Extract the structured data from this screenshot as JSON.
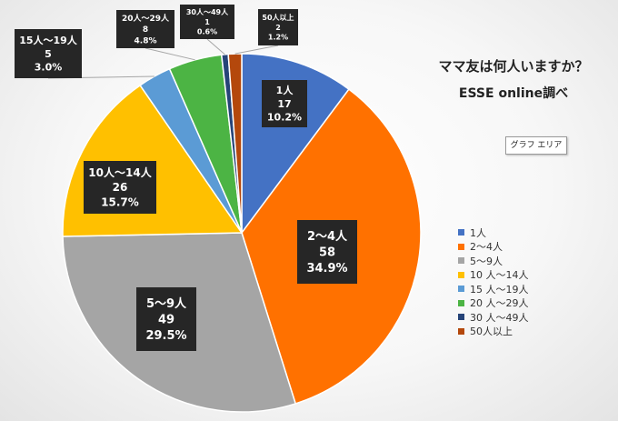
{
  "chart_data": {
    "type": "pie",
    "title": "ママ友は何人いますか？",
    "subtitle": "ESSE online調べ",
    "slices": [
      {
        "label": "1人",
        "count": "17",
        "value": 10.2,
        "pct": "10.2%",
        "color": "#4472C4"
      },
      {
        "label": "2～4人",
        "count": "58",
        "value": 34.9,
        "pct": "34.9%",
        "color": "#FF7100"
      },
      {
        "label": "5～9人",
        "count": "49",
        "value": 29.5,
        "pct": "29.5%",
        "color": "#A5A5A5"
      },
      {
        "label": "10人～14人",
        "count": "26",
        "value": 15.7,
        "pct": "15.7%",
        "color": "#FFC000"
      },
      {
        "label": "15人～19人",
        "count": "5",
        "value": 3.0,
        "pct": "3.0%",
        "color": "#5B9BD5"
      },
      {
        "label": "20人～29人",
        "count": "8",
        "value": 4.8,
        "pct": "4.8%",
        "color": "#4CB444"
      },
      {
        "label": "30人～49人",
        "count": "1",
        "value": 0.6,
        "pct": "0.6%",
        "color": "#264478"
      },
      {
        "label": "50人以上",
        "count": "2",
        "value": 1.2,
        "pct": "1.2%",
        "color": "#B4480C"
      }
    ],
    "legend": {
      "position": "right",
      "entries": [
        "1人",
        "2～4人",
        "5～9人",
        "10 人～14人",
        "15 人～19人",
        "20 人～29人",
        "30 人～49人",
        "50人以上"
      ]
    }
  },
  "tooltip": {
    "label": "グラフ エリア"
  }
}
